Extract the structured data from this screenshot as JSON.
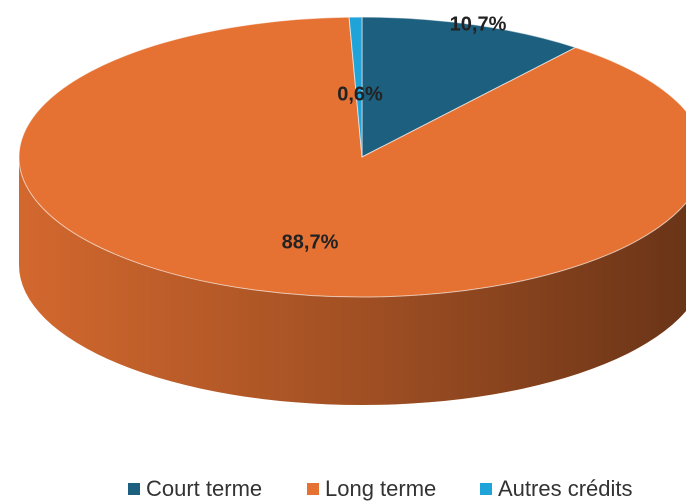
{
  "chart_data": {
    "type": "pie",
    "categories": [
      "Court terme",
      "Long terme",
      "Autres crédits"
    ],
    "values": [
      10.7,
      88.7,
      0.6
    ],
    "value_labels": [
      "10,7%",
      "88,7%",
      "0,6%"
    ],
    "colors": [
      "#1d5f7f",
      "#e57132",
      "#1fa3d9"
    ],
    "three_d": true,
    "legend": "bottom"
  }
}
